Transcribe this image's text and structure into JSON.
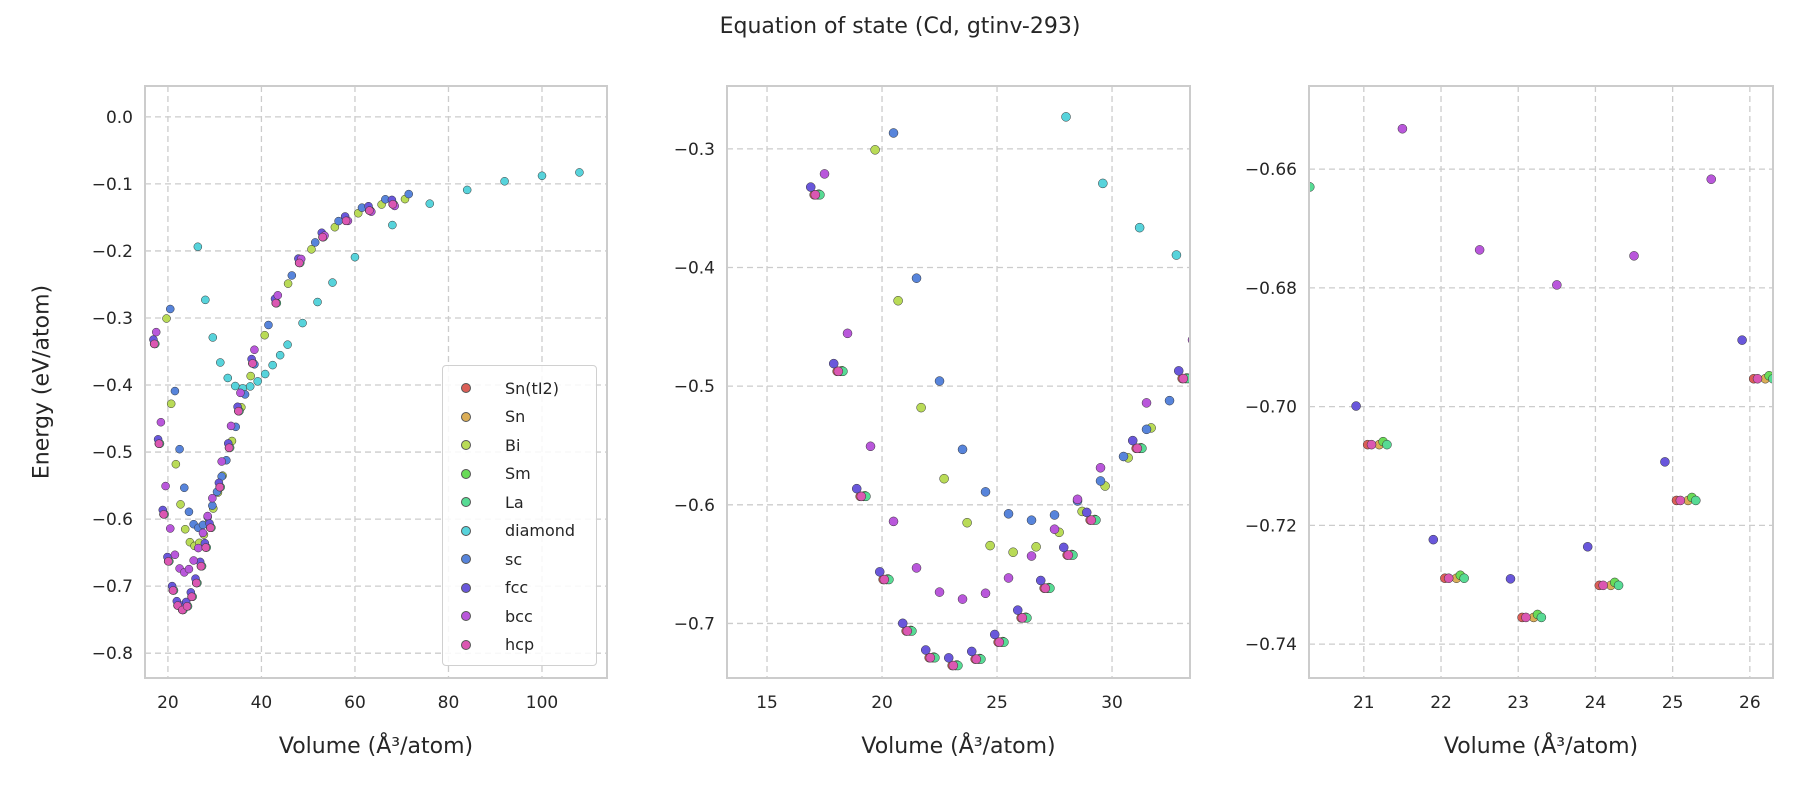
{
  "chart_data": {
    "type": "scatter",
    "title": "Equation of state (Cd, gtinv-293)",
    "ylabel": "Energy (eV/atom)",
    "grid": true,
    "legend_position": "lower-right (first panel)",
    "series": [
      {
        "name": "Sn(tI2)",
        "color": "#db5f57",
        "x": [
          17.05,
          18.05,
          19.05,
          20.05,
          21.05,
          22.05,
          23.05,
          24.05,
          25.05,
          26.05,
          27.05,
          28.05,
          29.05,
          31.05,
          33.05,
          35.05,
          38.05,
          43.05,
          48.05,
          53.05,
          58.05,
          63.05,
          68.05
        ],
        "y": [
          -0.3387,
          -0.4875,
          -0.5929,
          -0.663,
          -0.7064,
          -0.7289,
          -0.7355,
          -0.7301,
          -0.7158,
          -0.6953,
          -0.6703,
          -0.6424,
          -0.6129,
          -0.5524,
          -0.4936,
          -0.439,
          -0.3678,
          -0.2779,
          -0.2179,
          -0.1794,
          -0.1551,
          -0.1398,
          -0.1304
        ]
      },
      {
        "name": "Sn",
        "color": "#dbae57",
        "x": [
          17.2,
          18.2,
          19.2,
          20.2,
          21.2,
          22.2,
          23.2,
          24.2,
          25.2,
          26.2,
          27.2,
          28.2,
          29.2,
          31.2,
          33.2,
          35.2,
          38.2,
          43.2,
          48.2,
          53.2,
          58.2,
          63.2,
          68.2
        ],
        "y": [
          -0.3387,
          -0.4875,
          -0.5929,
          -0.663,
          -0.7064,
          -0.7289,
          -0.7355,
          -0.7301,
          -0.7158,
          -0.6953,
          -0.6703,
          -0.6424,
          -0.6129,
          -0.5524,
          -0.4936,
          -0.439,
          -0.3678,
          -0.2779,
          -0.2179,
          -0.1794,
          -0.1551,
          -0.1398,
          -0.1304
        ]
      },
      {
        "name": "Bi",
        "color": "#b9db57",
        "x": [
          19.7,
          20.7,
          21.7,
          22.7,
          23.7,
          24.7,
          25.7,
          26.7,
          27.7,
          28.7,
          29.7,
          30.7,
          31.7,
          33.7,
          35.7,
          37.7,
          40.7,
          45.7,
          50.7,
          55.7,
          60.7,
          65.7,
          70.7
        ],
        "y": [
          -0.3008,
          -0.428,
          -0.5181,
          -0.578,
          -0.6151,
          -0.6344,
          -0.64,
          -0.6354,
          -0.6232,
          -0.6056,
          -0.5842,
          -0.5604,
          -0.5352,
          -0.4835,
          -0.4332,
          -0.3866,
          -0.3257,
          -0.2488,
          -0.1976,
          -0.1646,
          -0.1438,
          -0.1308,
          -0.1227
        ]
      },
      {
        "name": "Sm",
        "color": "#69db57",
        "x": [
          17.25,
          18.25,
          19.25,
          20.25,
          21.25,
          22.25,
          23.25,
          24.25,
          25.25,
          26.25,
          27.25,
          28.25,
          29.25,
          31.25,
          33.25,
          35.25,
          38.25,
          43.25,
          48.25,
          53.25,
          58.25,
          63.25,
          68.25
        ],
        "y": [
          -0.3382,
          -0.487,
          -0.5924,
          -0.6625,
          -0.7059,
          -0.7284,
          -0.735,
          -0.7296,
          -0.7153,
          -0.6948,
          -0.6698,
          -0.6419,
          -0.6124,
          -0.5519,
          -0.4931,
          -0.4385,
          -0.3673,
          -0.2774,
          -0.2174,
          -0.1789,
          -0.1546,
          -0.1393,
          -0.1299
        ]
      },
      {
        "name": "La",
        "color": "#57db94",
        "x": [
          17.3,
          18.3,
          19.3,
          20.3,
          21.3,
          22.3,
          23.3,
          24.3,
          25.3,
          26.3,
          27.3,
          28.3,
          29.3,
          31.3,
          33.3,
          35.3,
          38.3,
          43.3,
          48.3,
          53.3,
          58.3,
          63.3,
          68.3
        ],
        "y": [
          -0.3387,
          -0.4875,
          -0.5929,
          -0.663,
          -0.7064,
          -0.7289,
          -0.7355,
          -0.7301,
          -0.7158,
          -0.6953,
          -0.6703,
          -0.6424,
          -0.6129,
          -0.5524,
          -0.4936,
          -0.439,
          -0.3678,
          -0.2779,
          -0.2179,
          -0.1794,
          -0.1551,
          -0.1398,
          -0.1304
        ]
      },
      {
        "name": "diamond",
        "color": "#57d3db",
        "x": [
          26.4,
          28,
          29.6,
          31.2,
          32.8,
          34.4,
          36,
          37.6,
          39.2,
          40.8,
          42.4,
          44,
          45.6,
          48.8,
          52,
          55.2,
          60,
          68,
          76,
          84,
          92,
          100,
          108
        ],
        "y": [
          -0.1938,
          -0.273,
          -0.3291,
          -0.3664,
          -0.3895,
          -0.4015,
          -0.405,
          -0.4021,
          -0.3945,
          -0.3836,
          -0.3703,
          -0.3555,
          -0.3398,
          -0.3076,
          -0.2762,
          -0.2472,
          -0.2093,
          -0.1614,
          -0.1295,
          -0.109,
          -0.0961,
          -0.0879,
          -0.0829
        ]
      },
      {
        "name": "sc",
        "color": "#5784db",
        "x": [
          20.5,
          21.5,
          22.5,
          23.5,
          24.5,
          25.5,
          26.5,
          27.5,
          28.5,
          29.5,
          30.5,
          31.5,
          32.5,
          34.5,
          36.5,
          38.5,
          41.5,
          46.5,
          51.5,
          56.5,
          61.5,
          66.5,
          71.5
        ],
        "y": [
          -0.2866,
          -0.409,
          -0.4957,
          -0.5533,
          -0.5891,
          -0.6076,
          -0.613,
          -0.6086,
          -0.5968,
          -0.5799,
          -0.5593,
          -0.5364,
          -0.5122,
          -0.4624,
          -0.414,
          -0.3691,
          -0.3105,
          -0.2366,
          -0.1873,
          -0.1555,
          -0.1355,
          -0.123,
          -0.1152
        ]
      },
      {
        "name": "fcc",
        "color": "#6957db",
        "x": [
          16.9,
          17.9,
          18.9,
          19.9,
          20.9,
          21.9,
          22.9,
          23.9,
          24.9,
          25.9,
          26.9,
          27.9,
          28.9,
          30.9,
          32.9,
          34.9,
          37.9,
          42.9,
          47.9,
          52.9,
          57.9,
          62.9,
          67.9
        ],
        "y": [
          -0.3322,
          -0.481,
          -0.5864,
          -0.6565,
          -0.6999,
          -0.7224,
          -0.729,
          -0.7236,
          -0.7093,
          -0.6888,
          -0.6638,
          -0.6359,
          -0.6064,
          -0.5459,
          -0.4871,
          -0.4325,
          -0.3613,
          -0.2714,
          -0.2114,
          -0.1729,
          -0.1486,
          -0.1333,
          -0.1239
        ]
      },
      {
        "name": "bcc",
        "color": "#b957db",
        "x": [
          17.5,
          18.5,
          19.5,
          20.5,
          21.5,
          22.5,
          23.5,
          24.5,
          25.5,
          26.5,
          27.5,
          28.5,
          29.5,
          31.5,
          33.5,
          35.5,
          38.5,
          43.5,
          48.5,
          53.5,
          58.5,
          63.5,
          68.5
        ],
        "y": [
          -0.3211,
          -0.4555,
          -0.5507,
          -0.614,
          -0.6532,
          -0.6736,
          -0.6795,
          -0.6746,
          -0.6617,
          -0.6432,
          -0.6206,
          -0.5954,
          -0.5688,
          -0.5141,
          -0.461,
          -0.4117,
          -0.3474,
          -0.2662,
          -0.212,
          -0.1772,
          -0.1552,
          -0.1415,
          -0.1329
        ]
      },
      {
        "name": "hcp",
        "color": "#db57b2",
        "x": [
          17.1,
          18.1,
          19.1,
          20.1,
          21.1,
          22.1,
          23.1,
          24.1,
          25.1,
          26.1,
          27.1,
          28.1,
          29.1,
          31.1,
          33.1,
          35.1,
          38.1,
          43.1,
          48.1,
          53.1,
          58.1,
          63.1,
          68.1
        ],
        "y": [
          -0.3387,
          -0.4875,
          -0.5929,
          -0.663,
          -0.7064,
          -0.7289,
          -0.7355,
          -0.7301,
          -0.7158,
          -0.6953,
          -0.6703,
          -0.6424,
          -0.6129,
          -0.5524,
          -0.4936,
          -0.439,
          -0.3678,
          -0.2779,
          -0.2179,
          -0.1794,
          -0.1551,
          -0.1398,
          -0.1304
        ]
      }
    ],
    "panels": [
      {
        "xlabel": "Volume (Å³/atom)",
        "xlim": [
          15.1,
          113.9
        ],
        "ylim": [
          -0.837,
          0.046
        ],
        "xticks": [
          20,
          40,
          60,
          80,
          100
        ],
        "yticks": [
          0.0,
          -0.1,
          -0.2,
          -0.3,
          -0.4,
          -0.5,
          -0.6,
          -0.7,
          -0.8
        ],
        "ytick_digits": 1
      },
      {
        "xlabel": "Volume (Å³/atom)",
        "xlim": [
          13.26,
          33.39
        ],
        "ylim": [
          -0.746,
          -0.247
        ],
        "xticks": [
          15,
          20,
          25,
          30
        ],
        "yticks": [
          -0.3,
          -0.4,
          -0.5,
          -0.6,
          -0.7
        ],
        "ytick_digits": 1
      },
      {
        "xlabel": "Volume (Å³/atom)",
        "xlim": [
          20.29,
          26.3
        ],
        "ylim": [
          -0.7457,
          -0.646
        ],
        "xticks": [
          21,
          22,
          23,
          24,
          25,
          26
        ],
        "yticks": [
          -0.66,
          -0.68,
          -0.7,
          -0.72,
          -0.74
        ],
        "ytick_digits": 2
      }
    ]
  }
}
